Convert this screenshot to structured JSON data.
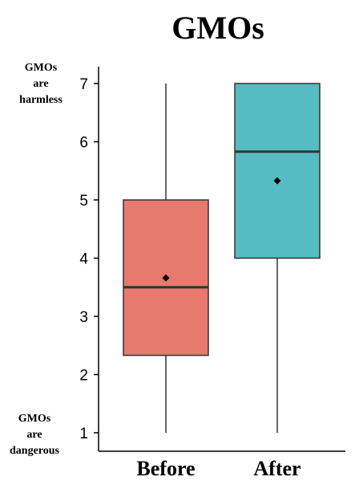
{
  "chart_data": {
    "type": "box",
    "title": "GMOs",
    "xlabel": "",
    "ylabel": "",
    "ylim": [
      1,
      7
    ],
    "yticks": [
      1,
      2,
      3,
      4,
      5,
      6,
      7
    ],
    "y_annotations": {
      "top": [
        "GMOs",
        "are",
        "harmless"
      ],
      "bottom": [
        "GMOs",
        "are",
        "dangerous"
      ]
    },
    "categories": [
      "Before",
      "After"
    ],
    "boxes": [
      {
        "category": "Before",
        "min": 1,
        "q1": 2.33,
        "median": 3.5,
        "q3": 5,
        "max": 7,
        "mean": 3.66,
        "color": "#e8796e"
      },
      {
        "category": "After",
        "min": 1,
        "q1": 4,
        "median": 5.83,
        "q3": 7,
        "max": 7,
        "mean": 5.33,
        "color": "#55bcc4"
      }
    ],
    "grid": false,
    "legend": "none"
  }
}
